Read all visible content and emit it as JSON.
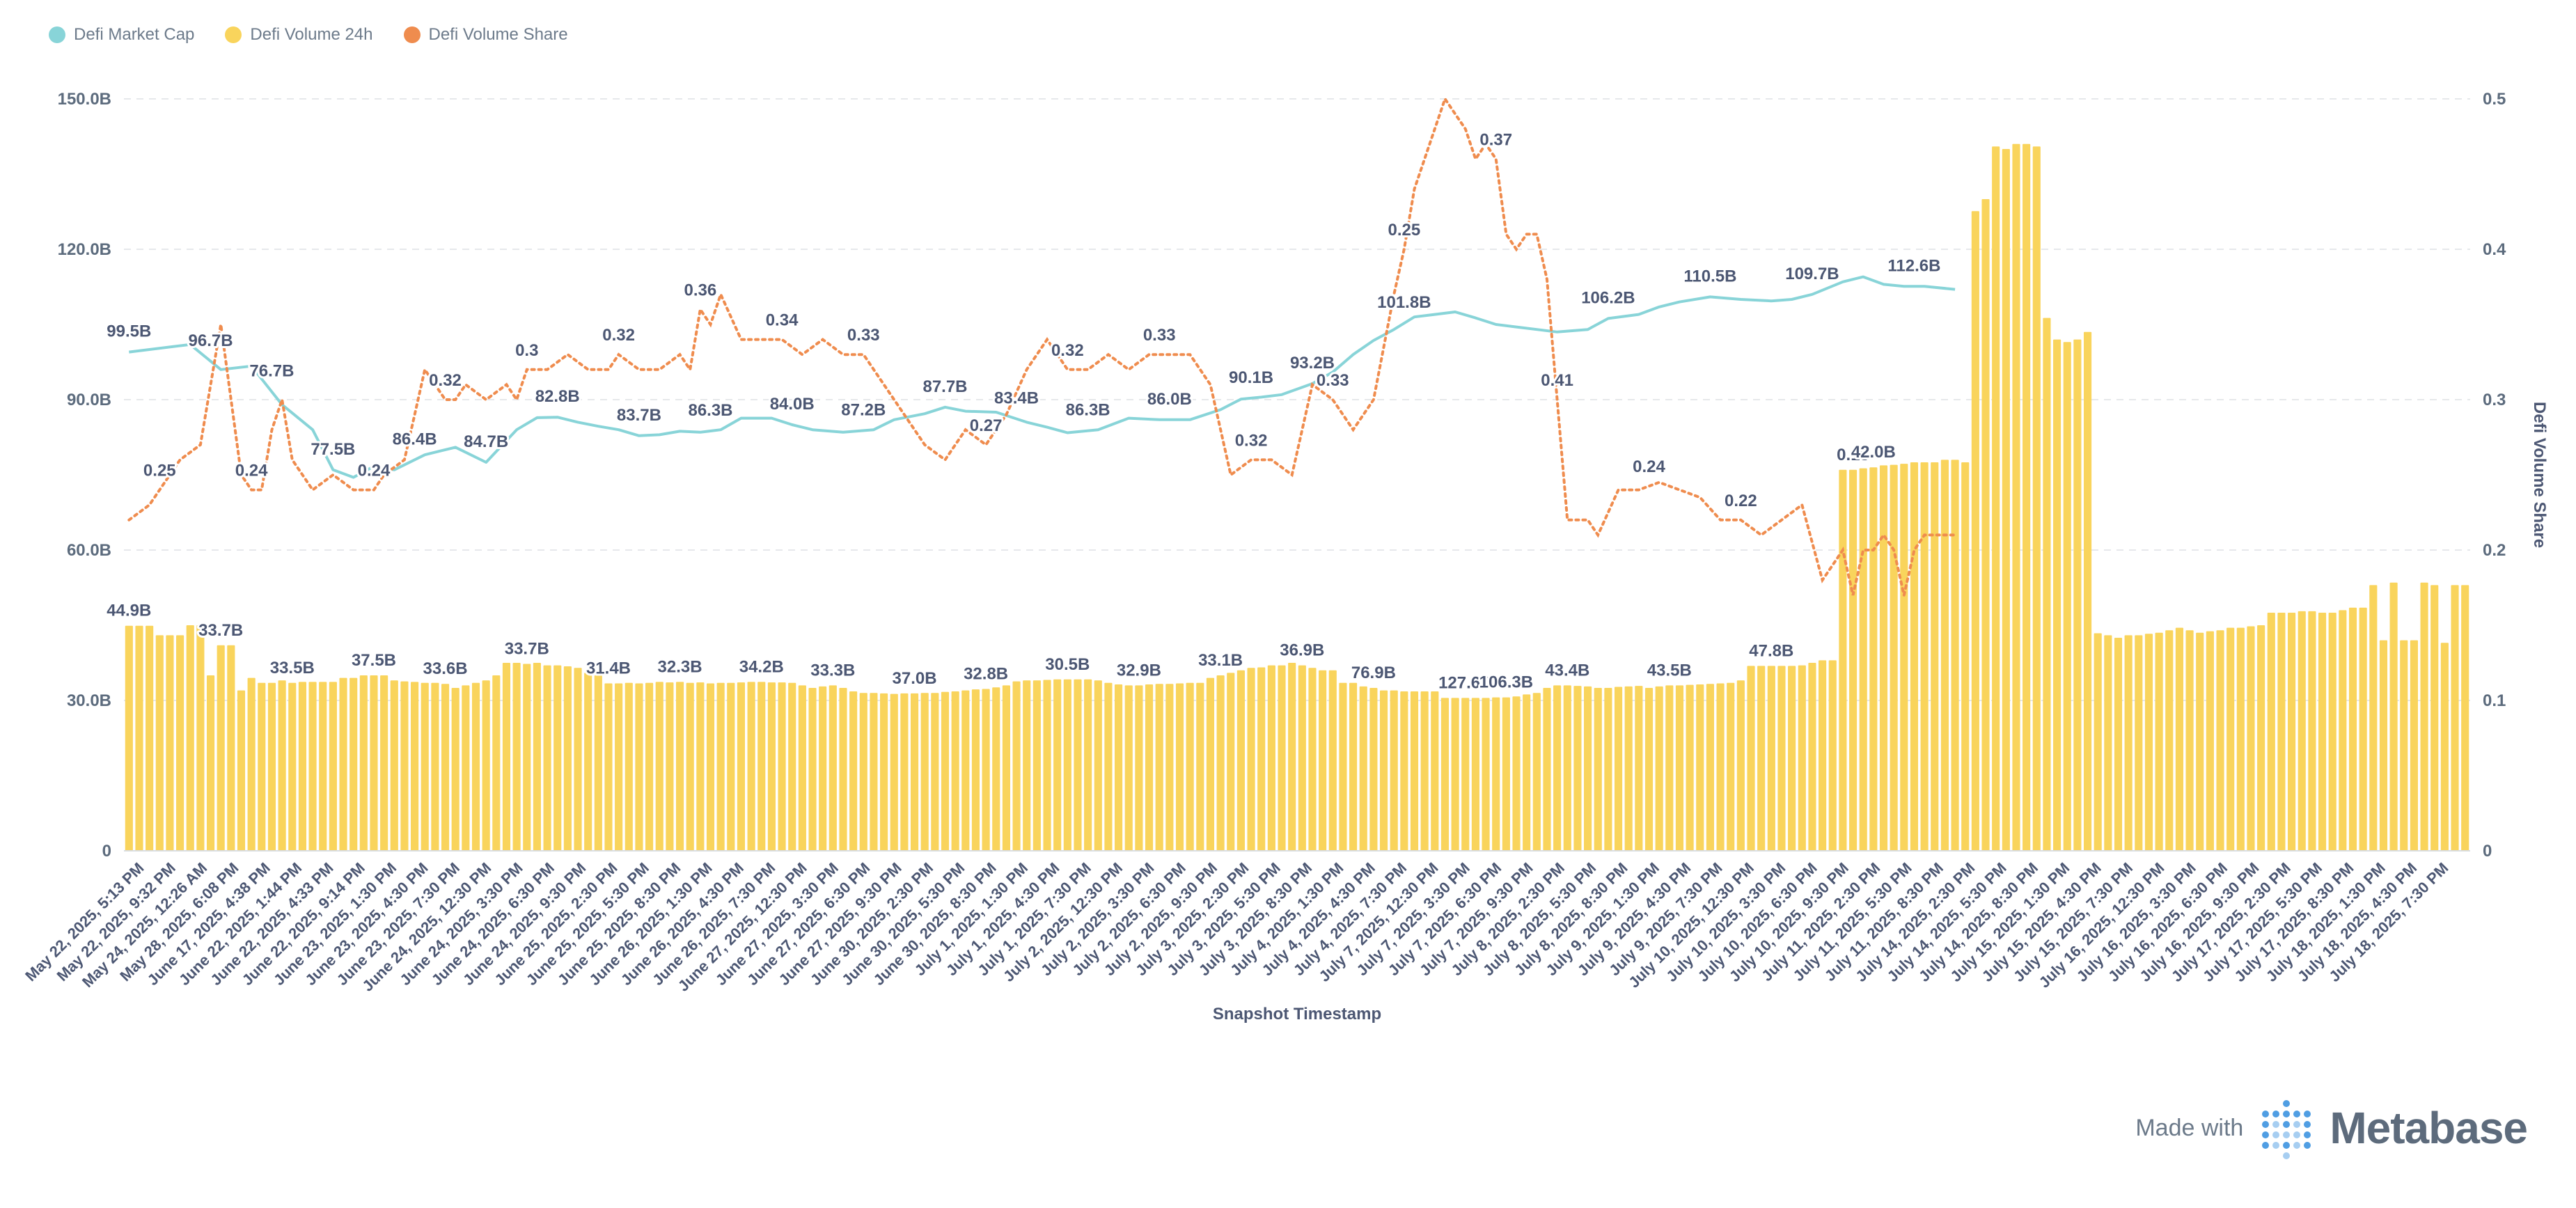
{
  "colors": {
    "market_cap": "#88d4d8",
    "volume": "#f9d45c",
    "share": "#ef8c4e",
    "grid": "#e6e8eb"
  },
  "legend": [
    {
      "label": "Defi Market Cap",
      "color": "#88d4d8"
    },
    {
      "label": "Defi Volume 24h",
      "color": "#f9d45c"
    },
    {
      "label": "Defi Volume Share",
      "color": "#ef8c4e"
    }
  ],
  "footer": {
    "made_with": "Made with",
    "brand": "Metabase"
  },
  "chart_data": {
    "type": "bar",
    "xlabel": "Snapshot Timestamp",
    "ylabel_right": "Defi Volume Share",
    "ylim_left": [
      0,
      150
    ],
    "ylim_right": [
      0,
      0.5
    ],
    "yticks_left": [
      "0",
      "30.0B",
      "60.0B",
      "90.0B",
      "120.0B",
      "150.0B"
    ],
    "yticks_right": [
      "0",
      "0.1",
      "0.2",
      "0.3",
      "0.4",
      "0.5"
    ],
    "grid": true,
    "legend_position": "top-left",
    "x_tick_labels": [
      "May 22, 2025, 5:13 PM",
      "May 22, 2025, 9:32 PM",
      "May 24, 2025, 12:26 AM",
      "May 28, 2025, 6:08 PM",
      "June 17, 2025, 4:38 PM",
      "June 22, 2025, 1:44 PM",
      "June 22, 2025, 4:33 PM",
      "June 22, 2025, 9:14 PM",
      "June 23, 2025, 1:30 PM",
      "June 23, 2025, 4:30 PM",
      "June 23, 2025, 7:30 PM",
      "June 24, 2025, 12:30 PM",
      "June 24, 2025, 3:30 PM",
      "June 24, 2025, 6:30 PM",
      "June 24, 2025, 9:30 PM",
      "June 25, 2025, 2:30 PM",
      "June 25, 2025, 5:30 PM",
      "June 25, 2025, 8:30 PM",
      "June 26, 2025, 1:30 PM",
      "June 26, 2025, 4:30 PM",
      "June 26, 2025, 7:30 PM",
      "June 27, 2025, 12:30 PM",
      "June 27, 2025, 3:30 PM",
      "June 27, 2025, 6:30 PM",
      "June 27, 2025, 9:30 PM",
      "June 30, 2025, 2:30 PM",
      "June 30, 2025, 5:30 PM",
      "June 30, 2025, 8:30 PM",
      "July 1, 2025, 1:30 PM",
      "July 1, 2025, 4:30 PM",
      "July 1, 2025, 7:30 PM",
      "July 2, 2025, 12:30 PM",
      "July 2, 2025, 3:30 PM",
      "July 2, 2025, 6:30 PM",
      "July 2, 2025, 9:30 PM",
      "July 3, 2025, 2:30 PM",
      "July 3, 2025, 5:30 PM",
      "July 3, 2025, 8:30 PM",
      "July 4, 2025, 1:30 PM",
      "July 4, 2025, 4:30 PM",
      "July 4, 2025, 7:30 PM",
      "July 7, 2025, 12:30 PM",
      "July 7, 2025, 3:30 PM",
      "July 7, 2025, 6:30 PM",
      "July 7, 2025, 9:30 PM",
      "July 8, 2025, 2:30 PM",
      "July 8, 2025, 5:30 PM",
      "July 8, 2025, 8:30 PM",
      "July 9, 2025, 1:30 PM",
      "July 9, 2025, 4:30 PM",
      "July 9, 2025, 7:30 PM",
      "July 10, 2025, 12:30 PM",
      "July 10, 2025, 3:30 PM",
      "July 10, 2025, 6:30 PM",
      "July 10, 2025, 9:30 PM",
      "July 11, 2025, 2:30 PM",
      "July 11, 2025, 5:30 PM",
      "July 11, 2025, 8:30 PM",
      "July 14, 2025, 2:30 PM",
      "July 14, 2025, 5:30 PM",
      "July 14, 2025, 8:30 PM",
      "July 15, 2025, 1:30 PM",
      "July 15, 2025, 4:30 PM",
      "July 15, 2025, 7:30 PM",
      "July 16, 2025, 12:30 PM",
      "July 16, 2025, 3:30 PM",
      "July 16, 2025, 6:30 PM",
      "July 16, 2025, 9:30 PM",
      "July 17, 2025, 2:30 PM",
      "July 17, 2025, 5:30 PM",
      "July 17, 2025, 8:30 PM",
      "July 18, 2025, 1:30 PM",
      "July 18, 2025, 4:30 PM",
      "July 18, 2025, 7:30 PM"
    ],
    "volume_label_map": {
      "0": "44.9B",
      "9": "33.7B",
      "16": "33.5B",
      "24": "37.5B",
      "31": "33.6B",
      "39": "33.7B",
      "47": "31.4B",
      "54": "32.3B",
      "62": "34.2B",
      "69": "33.3B",
      "77": "37.0B",
      "84": "32.8B",
      "92": "30.5B",
      "99": "32.9B",
      "107": "33.1B",
      "115": "36.9B",
      "122": "76.9B",
      "131": "127.6B",
      "135": "106.3B",
      "141": "43.4B",
      "151": "43.5B",
      "161": "47.8B",
      "169": "0.18",
      "171": "42.0B"
    },
    "cap_label_map": {
      "0": "99.5B",
      "8": "96.7B",
      "14": "76.7B",
      "20": "77.5B",
      "28": "86.4B",
      "35": "84.7B",
      "42": "82.8B",
      "50": "83.7B",
      "57": "86.3B",
      "65": "84.0B",
      "72": "87.2B",
      "80": "87.7B",
      "87": "83.4B",
      "94": "86.3B",
      "102": "86.0B",
      "110": "90.1B",
      "116": "93.2B",
      "125": "101.8B",
      "145": "106.2B",
      "155": "110.5B",
      "165": "109.7B",
      "175": "112.6B"
    },
    "share_label_map": {
      "3": "0.25",
      "12": "0.24",
      "24": "0.24",
      "31": "0.32",
      "39": "0.3",
      "48": "0.32",
      "56": "0.36",
      "64": "0.34",
      "72": "0.33",
      "84": "0.27",
      "92": "0.32",
      "101": "0.33",
      "110": "0.32",
      "118": "0.33",
      "125": "0.25",
      "134": "0.37",
      "140": "0.41",
      "149": "0.24",
      "158": "0.22"
    },
    "series": [
      {
        "name": "Defi Volume 24h",
        "kind": "bar",
        "axis": "left",
        "values": [
          44.9,
          44.9,
          44.9,
          43.0,
          43.0,
          43.0,
          45.0,
          45.0,
          35.0,
          41.0,
          41.0,
          32.0,
          34.5,
          33.5,
          33.5,
          34.0,
          33.5,
          33.7,
          33.7,
          33.7,
          33.7,
          34.5,
          34.5,
          35.0,
          35.0,
          35.0,
          34.0,
          33.8,
          33.7,
          33.5,
          33.5,
          33.3,
          32.5,
          33.0,
          33.5,
          34.0,
          35.0,
          37.5,
          37.5,
          37.3,
          37.5,
          37.0,
          37.0,
          36.8,
          36.5,
          35.5,
          35.0,
          33.4,
          33.4,
          33.5,
          33.4,
          33.5,
          33.7,
          33.6,
          33.7,
          33.5,
          33.6,
          33.4,
          33.5,
          33.5,
          33.6,
          33.7,
          33.7,
          33.6,
          33.6,
          33.5,
          33.0,
          32.5,
          32.8,
          33.0,
          32.5,
          31.8,
          31.5,
          31.5,
          31.4,
          31.3,
          31.4,
          31.4,
          31.5,
          31.5,
          31.7,
          31.8,
          32.0,
          32.2,
          32.3,
          32.6,
          33.0,
          33.8,
          34.0,
          34.0,
          34.1,
          34.2,
          34.2,
          34.2,
          34.2,
          34.0,
          33.5,
          33.2,
          33.0,
          33.0,
          33.2,
          33.3,
          33.3,
          33.4,
          33.5,
          33.5,
          34.5,
          35.0,
          35.5,
          36.0,
          36.5,
          36.6,
          37.0,
          37.0,
          37.5,
          37.0,
          36.5,
          36.0,
          36.0,
          33.5,
          33.5,
          32.8,
          32.5,
          32.0,
          32.0,
          31.8,
          31.8,
          31.8,
          31.8,
          30.5,
          30.5,
          30.5,
          30.5,
          30.5,
          30.6,
          30.6,
          30.8,
          31.2,
          31.5,
          32.5,
          33.0,
          33.0,
          32.9,
          32.8,
          32.5,
          32.5,
          32.7,
          32.8,
          32.9,
          32.5,
          32.8,
          33.0,
          33.0,
          33.1,
          33.2,
          33.3,
          33.4,
          33.5,
          34.0,
          36.9,
          36.9,
          36.9,
          36.9,
          36.9,
          37.0,
          37.5,
          38.0,
          38.0,
          76.0,
          76.0,
          76.3,
          76.5,
          76.9,
          77.0,
          77.2,
          77.5,
          77.5,
          77.5,
          78.0,
          78.0,
          77.5,
          127.6,
          130.0,
          140.5,
          140.0,
          141.0,
          141.0,
          140.5,
          106.3,
          102.0,
          101.5,
          102.0,
          103.5,
          43.4,
          43.0,
          42.5,
          43.0,
          43.0,
          43.3,
          43.5,
          44.0,
          44.5,
          44.0,
          43.5,
          43.8,
          44.0,
          44.5,
          44.5,
          44.8,
          45.0,
          47.5,
          47.5,
          47.5,
          47.8,
          47.8,
          47.5,
          47.5,
          48.0,
          48.5,
          48.5,
          53.0,
          42.0,
          53.5,
          42.0,
          42.0,
          53.5,
          53.0,
          41.5,
          53.0,
          53.0
        ]
      },
      {
        "name": "Defi Market Cap",
        "kind": "line",
        "axis": "left",
        "x_index": [
          0,
          6,
          9,
          12,
          15,
          18,
          20,
          22,
          24,
          26,
          29,
          32,
          35,
          38,
          40,
          42,
          44,
          46,
          48,
          50,
          52,
          54,
          56,
          58,
          60,
          63,
          65,
          67,
          70,
          73,
          75,
          78,
          80,
          82,
          85,
          88,
          90,
          92,
          95,
          98,
          101,
          104,
          107,
          109,
          111,
          113,
          116,
          118,
          120,
          122,
          124,
          126,
          128,
          130,
          132,
          134,
          136,
          138,
          140,
          143,
          145,
          148,
          150,
          152,
          155,
          158,
          161,
          163,
          165,
          168,
          170,
          172,
          174,
          176,
          179
        ],
        "values": [
          99.5,
          101.0,
          96.0,
          96.7,
          89.0,
          84.0,
          76.0,
          74.5,
          76.7,
          76.0,
          79.0,
          80.5,
          77.5,
          84.0,
          86.4,
          86.5,
          85.5,
          84.7,
          84.0,
          82.8,
          83.0,
          83.7,
          83.5,
          84.0,
          86.3,
          86.3,
          85.0,
          84.0,
          83.5,
          84.0,
          86.0,
          87.2,
          88.5,
          87.7,
          87.5,
          85.5,
          84.5,
          83.4,
          84.0,
          86.3,
          86.0,
          86.0,
          88.0,
          90.1,
          90.5,
          91.0,
          93.2,
          95.5,
          99.0,
          101.8,
          104.0,
          106.5,
          107.0,
          107.5,
          106.3,
          105.0,
          104.5,
          104.0,
          103.5,
          104.0,
          106.2,
          107.0,
          108.5,
          109.5,
          110.5,
          110.0,
          109.7,
          110.0,
          111.0,
          113.5,
          114.5,
          113.0,
          112.6,
          112.6,
          112.0
        ]
      },
      {
        "name": "Defi Volume Share",
        "kind": "line",
        "axis": "right",
        "x_index": [
          0,
          2,
          4,
          5,
          7,
          9,
          11,
          12,
          13,
          14,
          15,
          16,
          18,
          20,
          22,
          24,
          25,
          27,
          28,
          29,
          30,
          31,
          32,
          33,
          35,
          37,
          38,
          39,
          41,
          43,
          45,
          47,
          48,
          50,
          52,
          54,
          55,
          56,
          57,
          58,
          60,
          62,
          64,
          66,
          68,
          70,
          72,
          74,
          76,
          78,
          80,
          82,
          84,
          86,
          88,
          90,
          91,
          92,
          94,
          96,
          98,
          100,
          102,
          104,
          106,
          108,
          110,
          112,
          114,
          116,
          118,
          120,
          122,
          124,
          125,
          126,
          128,
          129,
          130,
          131,
          132,
          133,
          134,
          135,
          136,
          137,
          138,
          139,
          140,
          141,
          142,
          143,
          144,
          146,
          148,
          150,
          152,
          154,
          156,
          158,
          160,
          162,
          164,
          166,
          168,
          169,
          170,
          171,
          172,
          173,
          174,
          175,
          176,
          177,
          179
        ],
        "values": [
          0.22,
          0.23,
          0.25,
          0.26,
          0.27,
          0.35,
          0.25,
          0.24,
          0.24,
          0.28,
          0.3,
          0.26,
          0.24,
          0.25,
          0.24,
          0.24,
          0.25,
          0.26,
          0.29,
          0.32,
          0.31,
          0.3,
          0.3,
          0.31,
          0.3,
          0.31,
          0.3,
          0.32,
          0.32,
          0.33,
          0.32,
          0.32,
          0.33,
          0.32,
          0.32,
          0.33,
          0.32,
          0.36,
          0.35,
          0.37,
          0.34,
          0.34,
          0.34,
          0.33,
          0.34,
          0.33,
          0.33,
          0.31,
          0.29,
          0.27,
          0.26,
          0.28,
          0.27,
          0.29,
          0.32,
          0.34,
          0.33,
          0.32,
          0.32,
          0.33,
          0.32,
          0.33,
          0.33,
          0.33,
          0.31,
          0.25,
          0.26,
          0.26,
          0.25,
          0.31,
          0.3,
          0.28,
          0.3,
          0.37,
          0.4,
          0.44,
          0.48,
          0.5,
          0.49,
          0.48,
          0.46,
          0.47,
          0.46,
          0.41,
          0.4,
          0.41,
          0.41,
          0.38,
          0.3,
          0.22,
          0.22,
          0.22,
          0.21,
          0.24,
          0.24,
          0.245,
          0.24,
          0.235,
          0.22,
          0.22,
          0.21,
          0.22,
          0.23,
          0.18,
          0.2,
          0.17,
          0.2,
          0.2,
          0.21,
          0.2,
          0.17,
          0.2,
          0.21,
          0.21,
          0.21
        ]
      }
    ]
  }
}
